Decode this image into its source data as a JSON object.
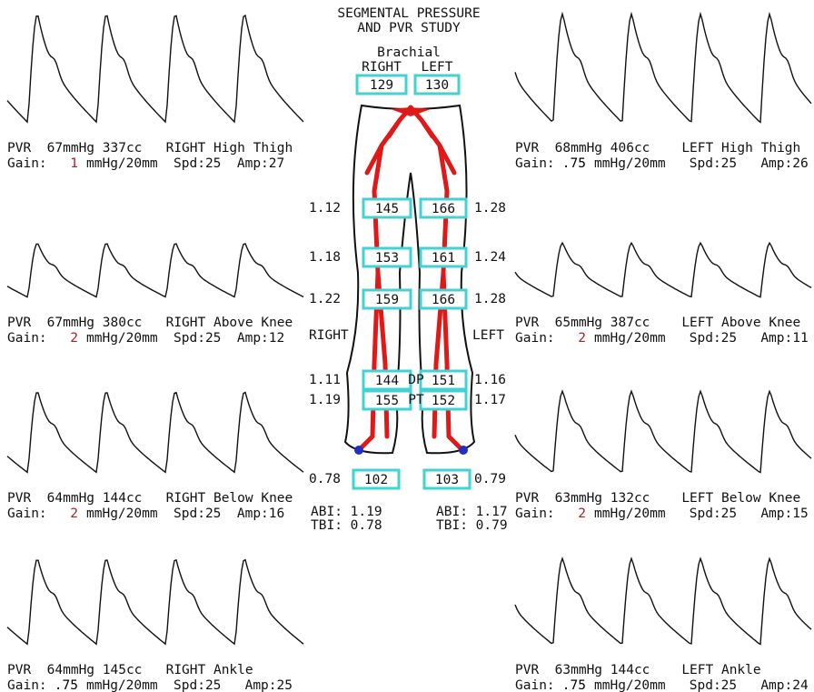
{
  "header": {
    "title_line1": "SEGMENTAL PRESSURE",
    "title_line2": "AND PVR STUDY"
  },
  "brachial": {
    "label": "Brachial",
    "right_label": "RIGHT",
    "left_label": "LEFT",
    "right": "129",
    "left": "130"
  },
  "levels": [
    {
      "right_index": "1.12",
      "right": "145",
      "left": "166",
      "left_index": "1.28"
    },
    {
      "right_index": "1.18",
      "right": "153",
      "left": "161",
      "left_index": "1.24"
    },
    {
      "right_index": "1.22",
      "right": "159",
      "left": "166",
      "left_index": "1.28"
    },
    {
      "right_index": "1.11",
      "right": "144",
      "label": "DP",
      "left": "151",
      "left_index": "1.16"
    },
    {
      "right_index": "1.19",
      "right": "155",
      "label": "PT",
      "left": "152",
      "left_index": "1.17"
    },
    {
      "right_index": "0.78",
      "right": "102",
      "left": "103",
      "left_index": "0.79"
    }
  ],
  "side_labels": {
    "right": "RIGHT",
    "left": "LEFT"
  },
  "indices": {
    "right_abi": "ABI: 1.19",
    "right_tbi": "TBI: 0.78",
    "left_abi": "ABI: 1.17",
    "left_tbi": "TBI: 0.79"
  },
  "panels": [
    {
      "line1": "PVR  67mmHg 337cc   RIGHT High Thigh",
      "gain_label": "Gain:",
      "gain": "1",
      "gain_color": "#b02020",
      "gain_rest": "mmHg/20mm  Spd:25  Amp:27"
    },
    {
      "line1": "PVR  68mmHg 406cc    LEFT High Thigh",
      "gain_label": "Gain:",
      "gain": ".75",
      "gain_color": "#000000",
      "gain_rest": "mmHg/20mm   Spd:25   Amp:26"
    },
    {
      "line1": "PVR  67mmHg 380cc   RIGHT Above Knee",
      "gain_label": "Gain:",
      "gain": "2",
      "gain_color": "#b02020",
      "gain_rest": "mmHg/20mm  Spd:25  Amp:12"
    },
    {
      "line1": "PVR  65mmHg 387cc    LEFT Above Knee",
      "gain_label": "Gain:",
      "gain": "2",
      "gain_color": "#b02020",
      "gain_rest": "mmHg/20mm   Spd:25   Amp:11"
    },
    {
      "line1": "PVR  64mmHg 144cc   RIGHT Below Knee",
      "gain_label": "Gain:",
      "gain": "2",
      "gain_color": "#b02020",
      "gain_rest": "mmHg/20mm  Spd:25  Amp:16"
    },
    {
      "line1": "PVR  63mmHg 132cc    LEFT Below Knee",
      "gain_label": "Gain:",
      "gain": "2",
      "gain_color": "#b02020",
      "gain_rest": "mmHg/20mm   Spd:25   Amp:15"
    },
    {
      "line1": "PVR  64mmHg 145cc   RIGHT Ankle",
      "gain_label": "Gain:",
      "gain": ".75",
      "gain_color": "#000000",
      "gain_rest": "mmHg/20mm  Spd:25   Amp:25"
    },
    {
      "line1": "PVR  63mmHg 144cc    LEFT Ankle",
      "gain_label": "Gain:",
      "gain": ".75",
      "gain_color": "#000000",
      "gain_rest": "mmHg/20mm   Spd:25   Amp:24"
    }
  ]
}
